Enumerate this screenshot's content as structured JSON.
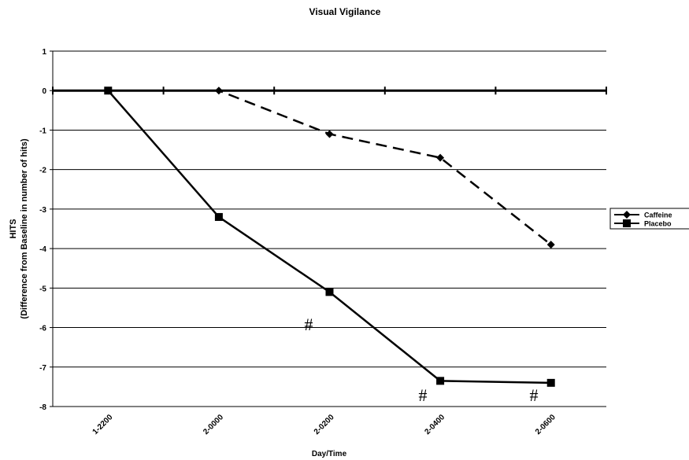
{
  "chart_data": {
    "type": "line",
    "title": "Visual Vigilance",
    "y_label": [
      "HITS",
      "(Difference from Baseline in number of hits)"
    ],
    "x_label": "Day/Time",
    "categories": [
      "1-2200",
      "2-0000",
      "2-0200",
      "2-0400",
      "2-0600"
    ],
    "series": [
      {
        "name": "Caffeine",
        "color": "#000000",
        "marker": "diamond",
        "line_style": "dashed",
        "values": [
          0,
          0,
          -1.1,
          -1.7,
          -3.9
        ]
      },
      {
        "name": "Placebo",
        "color": "#000000",
        "marker": "square",
        "line_style": "solid",
        "values": [
          0,
          -3.2,
          -5.1,
          -7.35,
          -7.4
        ]
      }
    ],
    "ylim": [
      -8,
      1
    ],
    "yticks": [
      1,
      0,
      -1,
      -2,
      -3,
      -4,
      -5,
      -6,
      -7,
      -8
    ],
    "grid": true,
    "legend": "right",
    "annotations": [
      "#",
      "#",
      "#"
    ]
  }
}
